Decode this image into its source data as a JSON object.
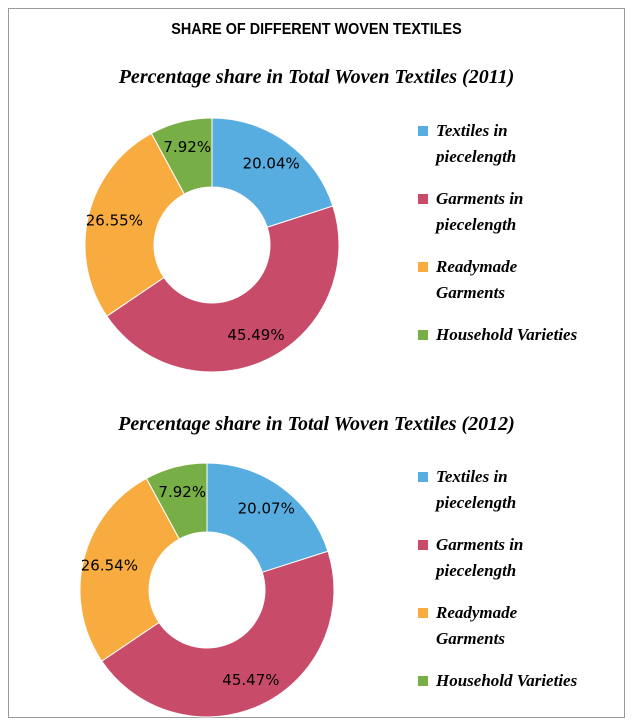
{
  "title": "SHARE OF DIFFERENT WOVEN TEXTILES",
  "chart_data": [
    {
      "type": "donut",
      "title": "Percentage share in Total Woven Textiles (2011)",
      "categories": [
        "Textiles in piecelength",
        "Garments in piecelength",
        "Readymade Garments",
        "Household Varieties"
      ],
      "values": [
        20.04,
        45.49,
        26.55,
        7.92
      ],
      "value_labels": [
        "20.04%",
        "45.49%",
        "26.55%",
        "7.92%"
      ],
      "colors": [
        "#58ade0",
        "#c84b69",
        "#f8ac40",
        "#78ae46"
      ]
    },
    {
      "type": "donut",
      "title": "Percentage share in Total Woven Textiles (2012)",
      "categories": [
        "Textiles in piecelength",
        "Garments in piecelength",
        "Readymade Garments",
        "Household Varieties"
      ],
      "values": [
        20.07,
        45.47,
        26.54,
        7.92
      ],
      "value_labels": [
        "20.07%",
        "45.47%",
        "26.54%",
        "7.92%"
      ],
      "colors": [
        "#58ade0",
        "#c84b69",
        "#f8ac40",
        "#78ae46"
      ]
    }
  ]
}
